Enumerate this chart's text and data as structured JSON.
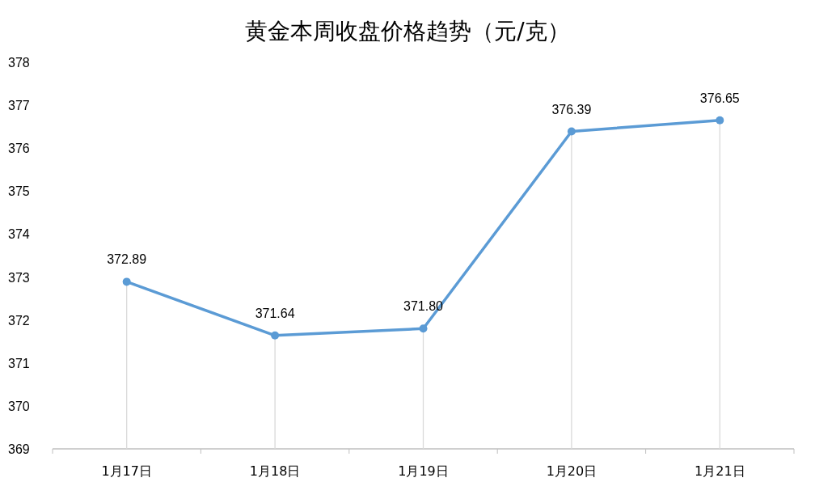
{
  "chart_data": {
    "type": "line",
    "title": "黄金本周收盘价格趋势（元/克）",
    "categories": [
      "1月17日",
      "1月18日",
      "1月19日",
      "1月20日",
      "1月21日"
    ],
    "series": [
      {
        "color": "#5b9bd5",
        "values": [
          372.89,
          371.64,
          371.8,
          376.39,
          376.65
        ],
        "value_labels": [
          "372.89",
          "371.64",
          "371.80",
          "376.39",
          "376.65"
        ]
      }
    ],
    "ylim": [
      369,
      378
    ],
    "yticks": [
      369,
      370,
      371,
      372,
      373,
      374,
      375,
      376,
      377,
      378
    ],
    "marker": "circle"
  }
}
